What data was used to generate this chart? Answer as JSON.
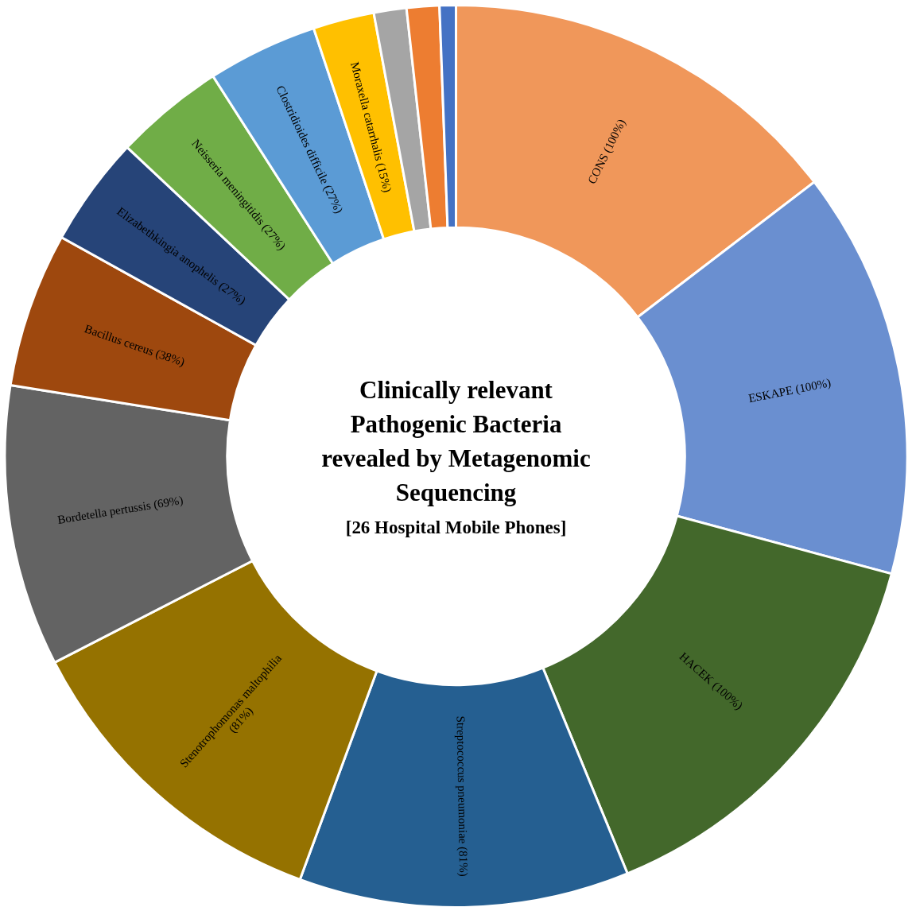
{
  "chart_data": {
    "type": "donut",
    "title": "Clinically relevant Pathogenic Bacteria revealed by Metagenomic Sequencing",
    "subtitle": "[26 Hospital Mobile Phones]",
    "categories": [
      "CONS (100%)",
      "ESKAPE (100%)",
      "HACEK (100%)",
      "Streptococcus pneumoniae (81%)",
      "Stenotrophomonas maltophilia (81%)",
      "Bordetella pertussis (69%)",
      "Bacillus cereus (38%)",
      "Elizabethkingia anophelis (27%)",
      "Neisseria meningitidis (27%)",
      "Clostridioides difficile (27%)",
      "Moraxella catarrhalis (15%)",
      null,
      null,
      null
    ],
    "values": [
      100,
      100,
      100,
      81,
      81,
      69,
      38,
      27,
      27,
      27,
      15,
      8,
      8,
      4
    ],
    "colors": [
      "#f0975a",
      "#6a8fd0",
      "#43682b",
      "#255f91",
      "#957200",
      "#636363",
      "#9e480e",
      "#264478",
      "#70ad47",
      "#5b9bd5",
      "#ffc000",
      "#a5a5a5",
      "#ed7d31",
      "#4472c4"
    ],
    "legend": false
  }
}
